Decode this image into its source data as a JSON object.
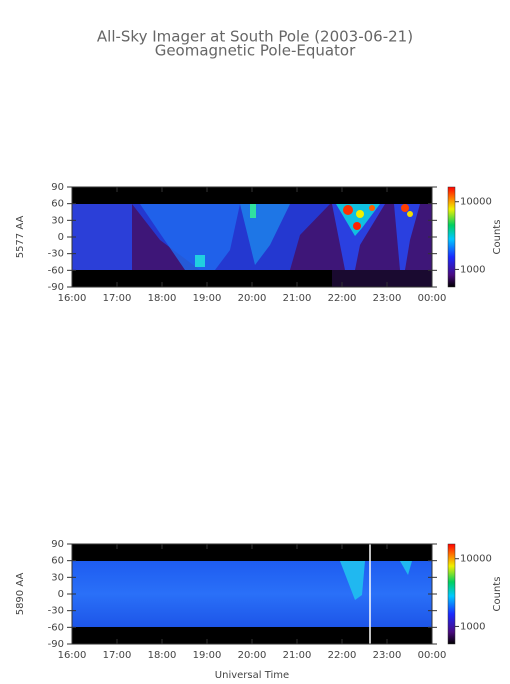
{
  "chart_data": [
    {
      "type": "heatmap",
      "title": "All-Sky Imager at South Pole (2003-06-21)",
      "subtitle": "Geomagnetic Pole-Equator",
      "ylabel": "5577 AA",
      "xlim": [
        16,
        24
      ],
      "xticks": [
        {
          "value": 16,
          "label": "16:00"
        },
        {
          "value": 17,
          "label": "17:00"
        },
        {
          "value": 18,
          "label": "18:00"
        },
        {
          "value": 19,
          "label": "19:00"
        },
        {
          "value": 20,
          "label": "20:00"
        },
        {
          "value": 21,
          "label": "21:00"
        },
        {
          "value": 22,
          "label": "22:00"
        },
        {
          "value": 23,
          "label": "23:00"
        },
        {
          "value": 24,
          "label": "00:00"
        }
      ],
      "ylim": [
        -90,
        90
      ],
      "yticks": [
        -90,
        -60,
        -30,
        0,
        30,
        60,
        90
      ],
      "colorbar": {
        "label": "Counts",
        "lim": [
          550,
          16500
        ],
        "ticks": [
          1000,
          10000
        ],
        "log": true
      }
    },
    {
      "type": "heatmap",
      "ylabel": "5890 AA",
      "xlabel": "Universal Time",
      "xlim": [
        16,
        24
      ],
      "xticks": [
        {
          "value": 16,
          "label": "16:00"
        },
        {
          "value": 17,
          "label": "17:00"
        },
        {
          "value": 18,
          "label": "18:00"
        },
        {
          "value": 19,
          "label": "19:00"
        },
        {
          "value": 20,
          "label": "20:00"
        },
        {
          "value": 21,
          "label": "21:00"
        },
        {
          "value": 22,
          "label": "22:00"
        },
        {
          "value": 23,
          "label": "23:00"
        },
        {
          "value": 24,
          "label": "00:00"
        }
      ],
      "ylim": [
        -90,
        90
      ],
      "yticks": [
        -90,
        -60,
        -30,
        0,
        30,
        60,
        90
      ],
      "colorbar": {
        "label": "Counts",
        "lim": [
          550,
          16500
        ],
        "ticks": [
          1000,
          10000
        ],
        "log": true
      }
    }
  ]
}
